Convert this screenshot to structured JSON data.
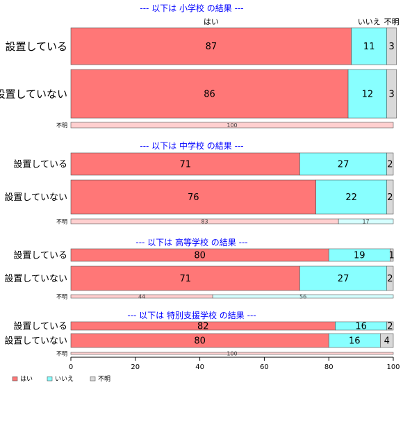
{
  "colors": {
    "yes": "#ff7777",
    "no": "#88ffff",
    "unknown": "#d9d9d9",
    "title": "#0000ff",
    "border": "#555555"
  },
  "header_labels": {
    "yes": "はい",
    "no": "いいえ",
    "unknown": "不明"
  },
  "legend": [
    {
      "key": "yes",
      "label": "はい"
    },
    {
      "key": "no",
      "label": "いいえ"
    },
    {
      "key": "unknown",
      "label": "不明"
    }
  ],
  "chart_data": {
    "type": "bar",
    "orientation": "horizontal",
    "stacked": true,
    "xlim": [
      0,
      100
    ],
    "xticks": [
      0,
      20,
      40,
      60,
      80,
      100
    ],
    "series_names": [
      "はい",
      "いいえ",
      "不明"
    ],
    "panels": [
      {
        "title": "--- 以下は 小学校 の結果 ---",
        "rows": [
          {
            "label": "設置している",
            "values": [
              87,
              11,
              3
            ]
          },
          {
            "label": "設置していない",
            "values": [
              86,
              12,
              3
            ]
          },
          {
            "label": "不明",
            "values": [
              100,
              0,
              0
            ],
            "thin": true
          }
        ]
      },
      {
        "title": "--- 以下は 中学校 の結果 ---",
        "rows": [
          {
            "label": "設置している",
            "values": [
              71,
              27,
              2
            ]
          },
          {
            "label": "設置していない",
            "values": [
              76,
              22,
              2
            ]
          },
          {
            "label": "不明",
            "values": [
              83,
              17,
              0
            ],
            "thin": true
          }
        ]
      },
      {
        "title": "--- 以下は 高等学校 の結果 ---",
        "rows": [
          {
            "label": "設置している",
            "values": [
              80,
              19,
              1
            ]
          },
          {
            "label": "設置していない",
            "values": [
              71,
              27,
              2
            ]
          },
          {
            "label": "不明",
            "values": [
              44,
              56,
              0
            ],
            "thin": true
          }
        ]
      },
      {
        "title": "--- 以下は 特別支援学校 の結果 ---",
        "rows": [
          {
            "label": "設置している",
            "values": [
              82,
              16,
              2
            ]
          },
          {
            "label": "設置していない",
            "values": [
              80,
              16,
              4
            ]
          },
          {
            "label": "不明",
            "values": [
              100,
              0,
              0
            ],
            "thin": true
          }
        ]
      }
    ]
  }
}
